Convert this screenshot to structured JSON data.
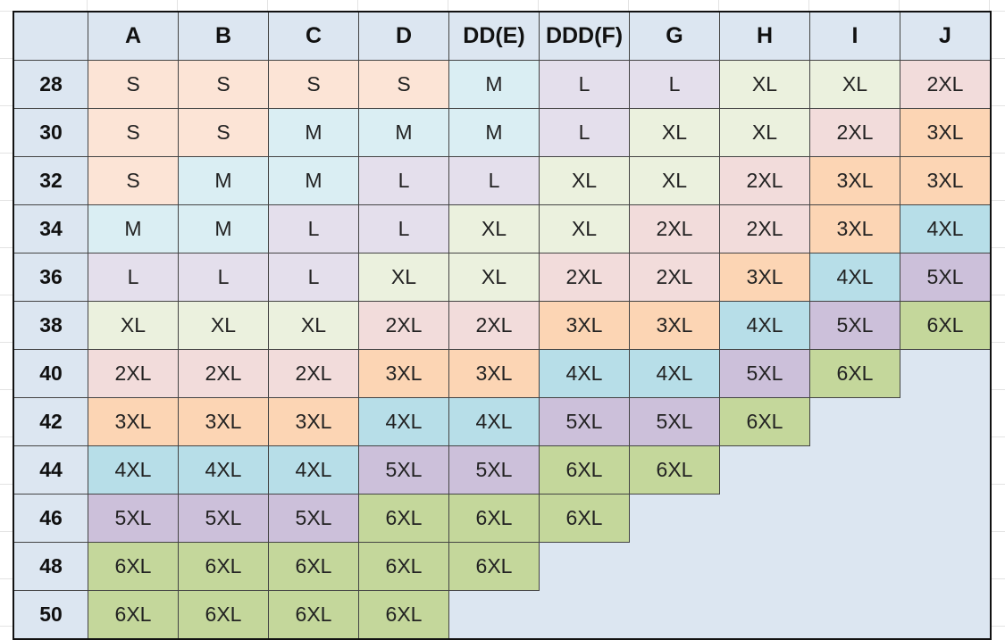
{
  "table": {
    "columns": [
      "A",
      "B",
      "C",
      "D",
      "DD(E)",
      "DDD(F)",
      "G",
      "H",
      "I",
      "J"
    ],
    "rows": [
      {
        "label": "28",
        "cells": [
          "S",
          "S",
          "S",
          "S",
          "M",
          "L",
          "L",
          "XL",
          "XL",
          "2XL"
        ]
      },
      {
        "label": "30",
        "cells": [
          "S",
          "S",
          "M",
          "M",
          "M",
          "L",
          "XL",
          "XL",
          "2XL",
          "3XL"
        ]
      },
      {
        "label": "32",
        "cells": [
          "S",
          "M",
          "M",
          "L",
          "L",
          "XL",
          "XL",
          "2XL",
          "3XL",
          "3XL"
        ]
      },
      {
        "label": "34",
        "cells": [
          "M",
          "M",
          "L",
          "L",
          "XL",
          "XL",
          "2XL",
          "2XL",
          "3XL",
          "4XL"
        ]
      },
      {
        "label": "36",
        "cells": [
          "L",
          "L",
          "L",
          "XL",
          "XL",
          "2XL",
          "2XL",
          "3XL",
          "4XL",
          "5XL"
        ]
      },
      {
        "label": "38",
        "cells": [
          "XL",
          "XL",
          "XL",
          "2XL",
          "2XL",
          "3XL",
          "3XL",
          "4XL",
          "5XL",
          "6XL"
        ]
      },
      {
        "label": "40",
        "cells": [
          "2XL",
          "2XL",
          "2XL",
          "3XL",
          "3XL",
          "4XL",
          "4XL",
          "5XL",
          "6XL"
        ]
      },
      {
        "label": "42",
        "cells": [
          "3XL",
          "3XL",
          "3XL",
          "4XL",
          "4XL",
          "5XL",
          "5XL",
          "6XL"
        ]
      },
      {
        "label": "44",
        "cells": [
          "4XL",
          "4XL",
          "4XL",
          "5XL",
          "5XL",
          "6XL",
          "6XL"
        ]
      },
      {
        "label": "46",
        "cells": [
          "5XL",
          "5XL",
          "5XL",
          "6XL",
          "6XL",
          "6XL"
        ]
      },
      {
        "label": "48",
        "cells": [
          "6XL",
          "6XL",
          "6XL",
          "6XL",
          "6XL"
        ]
      },
      {
        "label": "50",
        "cells": [
          "6XL",
          "6XL",
          "6XL",
          "6XL"
        ]
      }
    ],
    "size_colors": {
      "S": "#fce4d6",
      "M": "#daeef3",
      "L": "#e4dfec",
      "XL": "#ebf1de",
      "2XL": "#f2dcdb",
      "3XL": "#fcd5b4",
      "4XL": "#b7dee8",
      "5XL": "#ccc0da",
      "6XL": "#c4d79b"
    }
  }
}
